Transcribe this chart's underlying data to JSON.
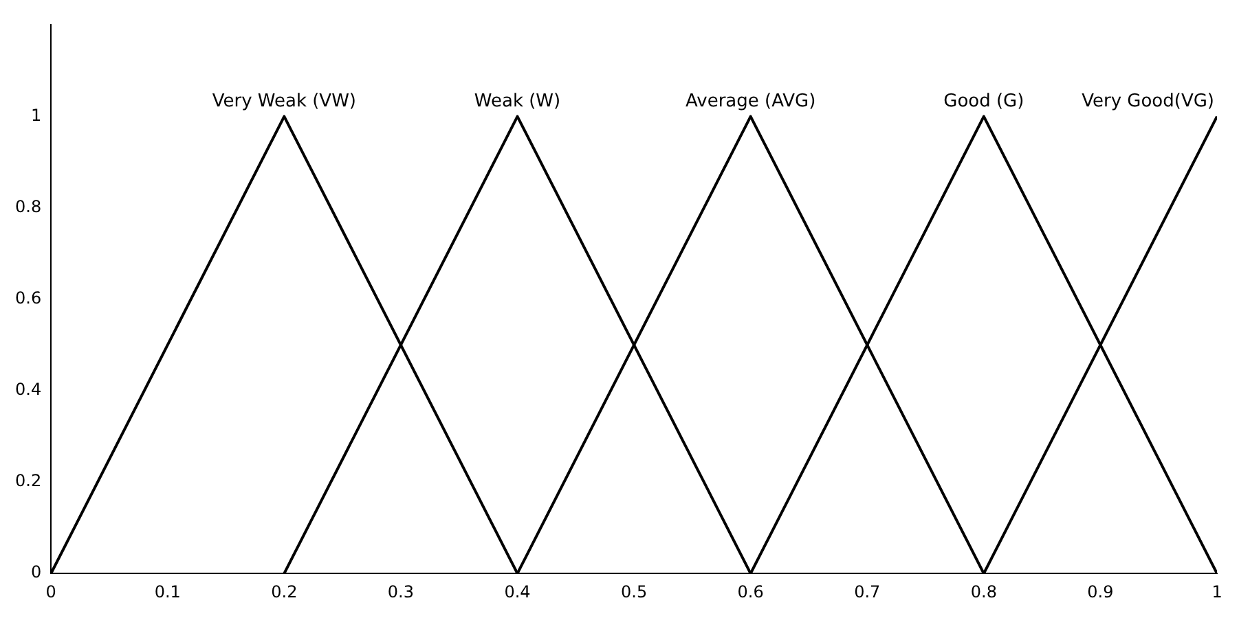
{
  "chart_data": {
    "type": "line",
    "xlim": [
      0,
      1
    ],
    "ylim": [
      0,
      1.2
    ],
    "xticks": [
      0,
      0.1,
      0.2,
      0.3,
      0.4,
      0.5,
      0.6,
      0.7,
      0.8,
      0.9,
      1
    ],
    "yticks": [
      0,
      0.2,
      0.4,
      0.6,
      0.8,
      1
    ],
    "grid": false,
    "legend": false,
    "marker": "none",
    "line_style": "solid",
    "series": [
      {
        "name": "Very Weak (VW)",
        "color": "#000000",
        "x": [
          0,
          0.2,
          0.4
        ],
        "values": [
          0,
          1,
          0
        ]
      },
      {
        "name": "Weak (W)",
        "color": "#000000",
        "x": [
          0.2,
          0.4,
          0.6
        ],
        "values": [
          0,
          1,
          0
        ]
      },
      {
        "name": "Average (AVG)",
        "color": "#000000",
        "x": [
          0.4,
          0.6,
          0.8
        ],
        "values": [
          0,
          1,
          0
        ]
      },
      {
        "name": "Good (G)",
        "color": "#000000",
        "x": [
          0.6,
          0.8,
          1
        ],
        "values": [
          0,
          1,
          0
        ]
      },
      {
        "name": "Very Good(VG)",
        "color": "#000000",
        "x": [
          0.8,
          1
        ],
        "values": [
          0,
          1
        ]
      }
    ]
  }
}
